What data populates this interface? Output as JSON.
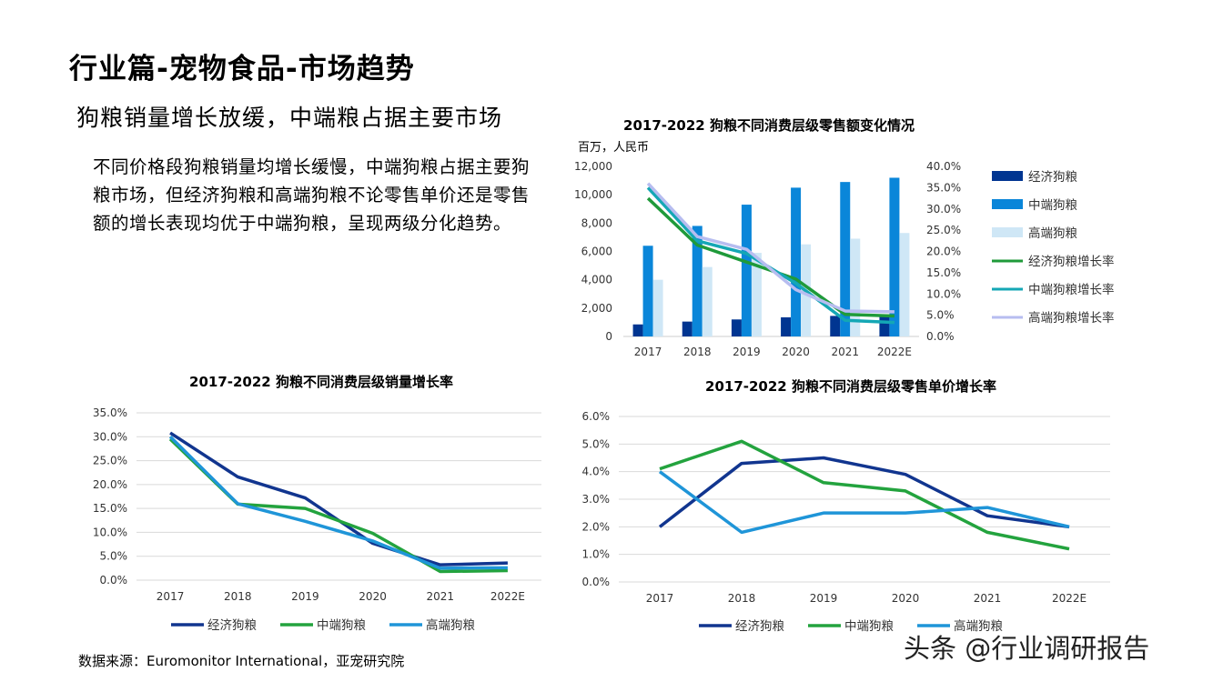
{
  "page": {
    "title": "行业篇-宠物食品-市场趋势",
    "subtitle": "狗粮销量增长放缓，中端粮占据主要市场",
    "body": "不同价格段狗粮销量均增长缓慢，中端狗粮占据主要狗粮市场，但经济狗粮和高端狗粮不论零售单价还是零售额的增长表现均优于中端狗粮，呈现两级分化趋势。",
    "source": "数据来源：Euromonitor International，亚宠研究院",
    "watermark": "头条 @行业调研报告"
  },
  "colors": {
    "economy": "#003591",
    "mid": "#0a86d9",
    "high": "#cfe7f6",
    "economy_growth": "#1f9a3a",
    "mid_growth": "#14a7b5",
    "high_growth": "#b7bdf0",
    "line_economy": "#11358f",
    "line_mid": "#23a33e",
    "line_high": "#1f95d8"
  },
  "chart_data": [
    {
      "type": "bar",
      "title": "2017-2022 狗粮不同消费层级零售额变化情况",
      "ylabel": "百万，人民币",
      "categories": [
        "2017",
        "2018",
        "2019",
        "2020",
        "2021",
        "2022E"
      ],
      "ylim": [
        0,
        12000
      ],
      "yticks": [
        "0",
        "2,000",
        "4,000",
        "6,000",
        "8,000",
        "10,000",
        "12,000"
      ],
      "y2lim": [
        0,
        40
      ],
      "y2ticks": [
        "0.0%",
        "5.0%",
        "10.0%",
        "15.0%",
        "20.0%",
        "25.0%",
        "30.0%",
        "35.0%",
        "40.0%"
      ],
      "grid": false,
      "legend_position": "right",
      "series": [
        {
          "name": "经济狗粮",
          "kind": "bar",
          "values": [
            850,
            1050,
            1200,
            1350,
            1450,
            1550
          ]
        },
        {
          "name": "中端狗粮",
          "kind": "bar",
          "values": [
            6400,
            7800,
            9300,
            10500,
            10900,
            11200
          ]
        },
        {
          "name": "高端狗粮",
          "kind": "bar",
          "values": [
            4000,
            4900,
            5900,
            6500,
            6900,
            7300
          ]
        },
        {
          "name": "经济狗粮增长率",
          "kind": "line",
          "axis": "right",
          "values": [
            32.5,
            21.5,
            17.5,
            13.5,
            5.2,
            4.8
          ]
        },
        {
          "name": "中端狗粮增长率",
          "kind": "line",
          "axis": "right",
          "values": [
            35,
            22.5,
            19.5,
            12.5,
            3.8,
            3.3
          ]
        },
        {
          "name": "高端狗粮增长率",
          "kind": "line",
          "axis": "right",
          "values": [
            36,
            23.5,
            20.5,
            11,
            6,
            5.8
          ]
        }
      ]
    },
    {
      "type": "line",
      "title": "2017-2022 狗粮不同消费层级销量增长率",
      "categories": [
        "2017",
        "2018",
        "2019",
        "2020",
        "2021",
        "2022E"
      ],
      "ylim": [
        0,
        35
      ],
      "yticks": [
        "0.0%",
        "5.0%",
        "10.0%",
        "15.0%",
        "20.0%",
        "25.0%",
        "30.0%",
        "35.0%"
      ],
      "grid": true,
      "legend_position": "bottom",
      "series": [
        {
          "name": "经济狗粮",
          "values": [
            30.8,
            21.6,
            17.2,
            7.7,
            3.2,
            3.6
          ]
        },
        {
          "name": "中端狗粮",
          "values": [
            29.5,
            15.9,
            15.0,
            9.8,
            1.8,
            2.0
          ]
        },
        {
          "name": "高端狗粮",
          "values": [
            30.0,
            16.0,
            12.3,
            8.2,
            2.5,
            2.6
          ]
        }
      ]
    },
    {
      "type": "line",
      "title": "2017-2022 狗粮不同消费层级零售单价增长率",
      "categories": [
        "2017",
        "2018",
        "2019",
        "2020",
        "2021",
        "2022E"
      ],
      "ylim": [
        0,
        6
      ],
      "yticks": [
        "0.0%",
        "1.0%",
        "2.0%",
        "3.0%",
        "4.0%",
        "5.0%",
        "6.0%"
      ],
      "grid": true,
      "legend_position": "bottom",
      "series": [
        {
          "name": "经济狗粮",
          "values": [
            2.0,
            4.3,
            4.5,
            3.9,
            2.4,
            2.0
          ]
        },
        {
          "name": "中端狗粮",
          "values": [
            4.1,
            5.1,
            3.6,
            3.3,
            1.8,
            1.2
          ]
        },
        {
          "name": "高端狗粮",
          "values": [
            4.0,
            1.8,
            2.5,
            2.5,
            2.7,
            2.0
          ]
        }
      ]
    }
  ]
}
